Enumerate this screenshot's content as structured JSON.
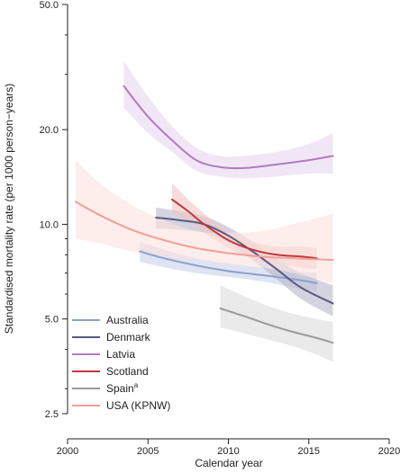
{
  "chart_data": {
    "type": "line",
    "xlabel": "Calendar year",
    "ylabel": "Standardised mortality rate (per 1000 person−years)",
    "y_scale": "log",
    "xlim": [
      2000,
      2020
    ],
    "ylim": [
      2.5,
      50.0
    ],
    "x_ticks": [
      2000,
      2005,
      2010,
      2015,
      2020
    ],
    "y_ticks": [
      2.5,
      5.0,
      10.0,
      20.0,
      50.0
    ],
    "y_tick_labels": [
      "2.5",
      "5.0",
      "10.0",
      "20.0",
      "50.0"
    ],
    "grid": false,
    "legend_position": "bottom-left",
    "series": [
      {
        "name": "Australia",
        "color": "#8da0cb",
        "band_color": "#c9d2ea",
        "points": [
          [
            2004.5,
            8.2
          ],
          [
            2006,
            7.8
          ],
          [
            2008,
            7.4
          ],
          [
            2010,
            7.1
          ],
          [
            2012,
            6.9
          ],
          [
            2014,
            6.7
          ],
          [
            2015.5,
            6.5
          ]
        ],
        "lower": [
          [
            2004.5,
            7.6
          ],
          [
            2006,
            7.3
          ],
          [
            2008,
            7.0
          ],
          [
            2010,
            6.8
          ],
          [
            2012,
            6.6
          ],
          [
            2014,
            6.3
          ],
          [
            2015.5,
            6.1
          ]
        ],
        "upper": [
          [
            2004.5,
            8.8
          ],
          [
            2006,
            8.3
          ],
          [
            2008,
            7.8
          ],
          [
            2010,
            7.5
          ],
          [
            2012,
            7.3
          ],
          [
            2014,
            7.1
          ],
          [
            2015.5,
            7.0
          ]
        ]
      },
      {
        "name": "Denmark",
        "color": "#5a5a82",
        "band_color": "#b8b8cc",
        "points": [
          [
            2005.5,
            10.5
          ],
          [
            2007,
            10.3
          ],
          [
            2008.5,
            10.0
          ],
          [
            2010,
            9.2
          ],
          [
            2011.5,
            8.2
          ],
          [
            2013,
            7.2
          ],
          [
            2014.5,
            6.3
          ],
          [
            2016.5,
            5.6
          ]
        ],
        "lower": [
          [
            2005.5,
            9.7
          ],
          [
            2007,
            9.6
          ],
          [
            2008.5,
            9.4
          ],
          [
            2010,
            8.7
          ],
          [
            2011.5,
            7.7
          ],
          [
            2013,
            6.7
          ],
          [
            2014.5,
            5.8
          ],
          [
            2016.5,
            5.1
          ]
        ],
        "upper": [
          [
            2005.5,
            11.3
          ],
          [
            2007,
            11.0
          ],
          [
            2008.5,
            10.6
          ],
          [
            2010,
            9.8
          ],
          [
            2011.5,
            8.8
          ],
          [
            2013,
            7.8
          ],
          [
            2014.5,
            7.0
          ],
          [
            2016.5,
            6.4
          ]
        ]
      },
      {
        "name": "Latvia",
        "color": "#b07cbe",
        "band_color": "#e8d6ef",
        "points": [
          [
            2003.5,
            27.5
          ],
          [
            2005,
            22.0
          ],
          [
            2006.5,
            18.5
          ],
          [
            2008,
            16.0
          ],
          [
            2009.5,
            15.2
          ],
          [
            2011,
            15.1
          ],
          [
            2013,
            15.5
          ],
          [
            2015,
            16.0
          ],
          [
            2016.5,
            16.5
          ]
        ],
        "lower": [
          [
            2003.5,
            23.5
          ],
          [
            2005,
            19.5
          ],
          [
            2006.5,
            17.0
          ],
          [
            2008,
            14.8
          ],
          [
            2009.5,
            14.2
          ],
          [
            2011,
            14.0
          ],
          [
            2013,
            14.2
          ],
          [
            2015,
            14.5
          ],
          [
            2016.5,
            14.5
          ]
        ],
        "upper": [
          [
            2003.5,
            33.0
          ],
          [
            2005,
            25.5
          ],
          [
            2006.5,
            20.5
          ],
          [
            2008,
            17.5
          ],
          [
            2009.5,
            16.5
          ],
          [
            2011,
            16.5
          ],
          [
            2013,
            17.0
          ],
          [
            2015,
            18.0
          ],
          [
            2016.5,
            19.5
          ]
        ]
      },
      {
        "name": "Scotland",
        "color": "#c0393b",
        "band_color": "#f0c4c2",
        "points": [
          [
            2006.5,
            12.0
          ],
          [
            2007.5,
            11.0
          ],
          [
            2008.5,
            10.0
          ],
          [
            2010,
            8.9
          ],
          [
            2011.5,
            8.3
          ],
          [
            2013,
            8.0
          ],
          [
            2014.5,
            7.9
          ],
          [
            2015.5,
            7.8
          ]
        ],
        "lower": [
          [
            2006.5,
            10.8
          ],
          [
            2007.5,
            10.2
          ],
          [
            2008.5,
            9.4
          ],
          [
            2010,
            8.4
          ],
          [
            2011.5,
            7.8
          ],
          [
            2013,
            7.5
          ],
          [
            2014.5,
            7.3
          ],
          [
            2015.5,
            7.2
          ]
        ],
        "upper": [
          [
            2006.5,
            13.5
          ],
          [
            2007.5,
            12.0
          ],
          [
            2008.5,
            10.8
          ],
          [
            2010,
            9.5
          ],
          [
            2011.5,
            8.8
          ],
          [
            2013,
            8.5
          ],
          [
            2014.5,
            8.5
          ],
          [
            2015.5,
            8.4
          ]
        ]
      },
      {
        "name": "Spain",
        "name_superscript": "a",
        "color": "#9a9a9a",
        "band_color": "#dcdcdc",
        "points": [
          [
            2009.5,
            5.4
          ],
          [
            2011,
            5.1
          ],
          [
            2012.5,
            4.8
          ],
          [
            2014,
            4.55
          ],
          [
            2015.5,
            4.35
          ],
          [
            2016.5,
            4.2
          ]
        ],
        "lower": [
          [
            2009.5,
            4.7
          ],
          [
            2011,
            4.5
          ],
          [
            2012.5,
            4.3
          ],
          [
            2014,
            4.1
          ],
          [
            2015.5,
            3.85
          ],
          [
            2016.5,
            3.65
          ]
        ],
        "upper": [
          [
            2009.5,
            6.4
          ],
          [
            2011,
            5.9
          ],
          [
            2012.5,
            5.5
          ],
          [
            2014,
            5.2
          ],
          [
            2015.5,
            5.0
          ],
          [
            2016.5,
            4.9
          ]
        ]
      },
      {
        "name": "USA (KPNW)",
        "color": "#f0a099",
        "band_color": "#fbe1dd",
        "points": [
          [
            2000.5,
            11.8
          ],
          [
            2002,
            10.7
          ],
          [
            2004,
            9.6
          ],
          [
            2006,
            8.9
          ],
          [
            2008,
            8.4
          ],
          [
            2010,
            8.1
          ],
          [
            2012,
            7.9
          ],
          [
            2014,
            7.8
          ],
          [
            2016.5,
            7.7
          ]
        ],
        "lower": [
          [
            2000.5,
            9.0
          ],
          [
            2002,
            8.7
          ],
          [
            2004,
            8.2
          ],
          [
            2006,
            7.9
          ],
          [
            2008,
            7.7
          ],
          [
            2010,
            7.5
          ],
          [
            2012,
            7.3
          ],
          [
            2014,
            7.0
          ],
          [
            2016.5,
            6.5
          ]
        ],
        "upper": [
          [
            2000.5,
            16.0
          ],
          [
            2002,
            13.5
          ],
          [
            2004,
            11.5
          ],
          [
            2006,
            10.3
          ],
          [
            2008,
            9.5
          ],
          [
            2010,
            9.4
          ],
          [
            2012,
            9.5
          ],
          [
            2014,
            10.0
          ],
          [
            2016.5,
            10.8
          ]
        ]
      }
    ]
  }
}
